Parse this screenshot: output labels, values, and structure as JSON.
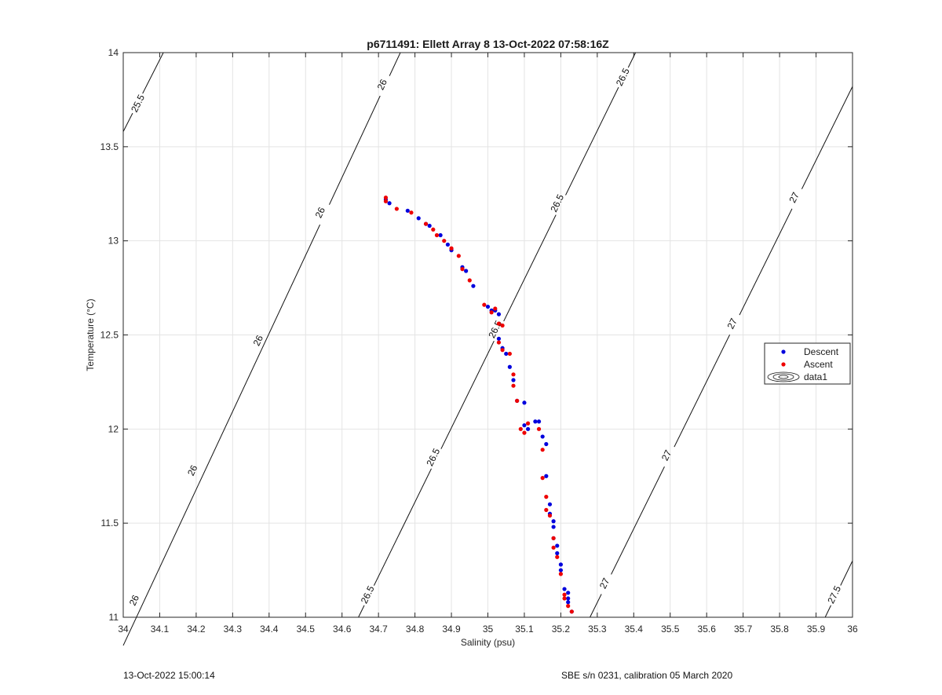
{
  "chart_data": {
    "type": "scatter",
    "title": "p6711491: Ellett Array 8 13-Oct-2022 07:58:16Z",
    "xlabel": "Salinity (psu)",
    "ylabel": "Temperature (°C)",
    "xlim": [
      34,
      36
    ],
    "ylim": [
      11,
      14
    ],
    "x_ticks": [
      "34",
      "34.1",
      "34.2",
      "34.3",
      "34.4",
      "34.5",
      "34.6",
      "34.7",
      "34.8",
      "34.9",
      "35",
      "35.1",
      "35.2",
      "35.3",
      "35.4",
      "35.5",
      "35.6",
      "35.7",
      "35.8",
      "35.9",
      "36"
    ],
    "y_ticks": [
      "11",
      "11.5",
      "12",
      "12.5",
      "13",
      "13.5",
      "14"
    ],
    "grid": true,
    "legend": {
      "placement": "right",
      "entries": [
        "Descent",
        "Ascent",
        "data1"
      ]
    },
    "contours": [
      {
        "level": "25.5",
        "points": [
          [
            34.0,
            13.58
          ],
          [
            34.11,
            14.0
          ]
        ],
        "labels": [
          {
            "x": 34.04,
            "y": 13.73
          }
        ]
      },
      {
        "level": "26",
        "points": [
          [
            34.0,
            10.85
          ],
          [
            34.76,
            14.0
          ]
        ],
        "labels": [
          {
            "x": 34.03,
            "y": 11.09
          },
          {
            "x": 34.19,
            "y": 11.78
          },
          {
            "x": 34.37,
            "y": 12.47
          },
          {
            "x": 34.54,
            "y": 13.15
          },
          {
            "x": 34.71,
            "y": 13.83
          }
        ]
      },
      {
        "level": "26.5",
        "points": [
          [
            34.645,
            11.0
          ],
          [
            35.405,
            14.0
          ]
        ],
        "labels": [
          {
            "x": 34.67,
            "y": 11.12
          },
          {
            "x": 34.85,
            "y": 11.85
          },
          {
            "x": 35.02,
            "y": 12.53
          },
          {
            "x": 35.19,
            "y": 13.2
          },
          {
            "x": 35.37,
            "y": 13.87
          }
        ]
      },
      {
        "level": "27",
        "points": [
          [
            35.28,
            11.0
          ],
          [
            36.0,
            13.82
          ]
        ],
        "labels": [
          {
            "x": 35.32,
            "y": 11.18
          },
          {
            "x": 35.49,
            "y": 11.86
          },
          {
            "x": 35.67,
            "y": 12.56
          },
          {
            "x": 35.84,
            "y": 13.23
          }
        ]
      },
      {
        "level": "27.5",
        "points": [
          [
            35.925,
            11.0
          ],
          [
            36.0,
            11.3
          ]
        ],
        "labels": [
          {
            "x": 35.95,
            "y": 11.12
          }
        ]
      }
    ],
    "series": [
      {
        "name": "Descent",
        "color": "#0000dd",
        "points": [
          [
            34.72,
            13.22
          ],
          [
            34.73,
            13.2
          ],
          [
            34.78,
            13.16
          ],
          [
            34.81,
            13.12
          ],
          [
            34.83,
            13.09
          ],
          [
            34.84,
            13.08
          ],
          [
            34.87,
            13.03
          ],
          [
            34.89,
            12.98
          ],
          [
            34.9,
            12.95
          ],
          [
            34.93,
            12.86
          ],
          [
            34.94,
            12.84
          ],
          [
            34.96,
            12.76
          ],
          [
            35.0,
            12.65
          ],
          [
            35.01,
            12.63
          ],
          [
            35.02,
            12.63
          ],
          [
            35.03,
            12.61
          ],
          [
            35.03,
            12.48
          ],
          [
            35.04,
            12.43
          ],
          [
            35.05,
            12.4
          ],
          [
            35.06,
            12.33
          ],
          [
            35.07,
            12.26
          ],
          [
            35.08,
            12.15
          ],
          [
            35.1,
            12.14
          ],
          [
            35.1,
            12.02
          ],
          [
            35.11,
            12.0
          ],
          [
            35.13,
            12.04
          ],
          [
            35.14,
            12.04
          ],
          [
            35.15,
            11.96
          ],
          [
            35.16,
            11.92
          ],
          [
            35.16,
            11.75
          ],
          [
            35.17,
            11.6
          ],
          [
            35.17,
            11.55
          ],
          [
            35.18,
            11.51
          ],
          [
            35.18,
            11.48
          ],
          [
            35.18,
            11.42
          ],
          [
            35.19,
            11.38
          ],
          [
            35.19,
            11.34
          ],
          [
            35.2,
            11.28
          ],
          [
            35.2,
            11.25
          ],
          [
            35.21,
            11.15
          ],
          [
            35.22,
            11.13
          ],
          [
            35.22,
            11.1
          ],
          [
            35.22,
            11.08
          ],
          [
            35.23,
            11.03
          ]
        ]
      },
      {
        "name": "Ascent",
        "color": "#ee0000",
        "points": [
          [
            34.72,
            13.23
          ],
          [
            34.72,
            13.21
          ],
          [
            34.75,
            13.17
          ],
          [
            34.79,
            13.15
          ],
          [
            34.83,
            13.09
          ],
          [
            34.85,
            13.06
          ],
          [
            34.86,
            13.03
          ],
          [
            34.88,
            13.0
          ],
          [
            34.9,
            12.96
          ],
          [
            34.92,
            12.92
          ],
          [
            34.93,
            12.85
          ],
          [
            34.95,
            12.79
          ],
          [
            34.99,
            12.66
          ],
          [
            35.01,
            12.62
          ],
          [
            35.02,
            12.64
          ],
          [
            35.03,
            12.56
          ],
          [
            35.04,
            12.55
          ],
          [
            35.03,
            12.46
          ],
          [
            35.04,
            12.42
          ],
          [
            35.06,
            12.4
          ],
          [
            35.07,
            12.29
          ],
          [
            35.07,
            12.23
          ],
          [
            35.08,
            12.15
          ],
          [
            35.09,
            12.0
          ],
          [
            35.1,
            11.98
          ],
          [
            35.11,
            12.03
          ],
          [
            35.14,
            12.0
          ],
          [
            35.15,
            11.89
          ],
          [
            35.15,
            11.74
          ],
          [
            35.16,
            11.64
          ],
          [
            35.16,
            11.57
          ],
          [
            35.17,
            11.54
          ],
          [
            35.18,
            11.42
          ],
          [
            35.18,
            11.37
          ],
          [
            35.19,
            11.32
          ],
          [
            35.2,
            11.23
          ],
          [
            35.21,
            11.1
          ],
          [
            35.21,
            11.12
          ],
          [
            35.22,
            11.06
          ],
          [
            35.23,
            11.03
          ]
        ]
      }
    ]
  },
  "footer": {
    "left": "13-Oct-2022 15:00:14",
    "right": "SBE s/n 0231, calibration 05 March 2020"
  }
}
